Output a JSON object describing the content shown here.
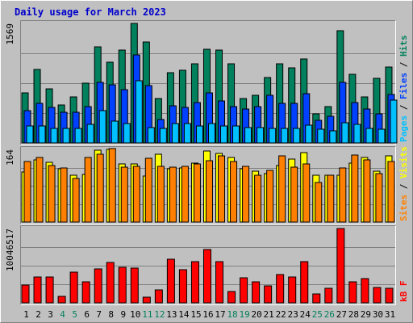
{
  "chart_data": {
    "type": "bar",
    "title": "Daily usage for March 2023",
    "days": [
      "1",
      "2",
      "3",
      "4",
      "5",
      "6",
      "7",
      "8",
      "9",
      "10",
      "11",
      "12",
      "13",
      "14",
      "15",
      "16",
      "17",
      "18",
      "19",
      "20",
      "21",
      "22",
      "23",
      "24",
      "25",
      "26",
      "27",
      "28",
      "29",
      "30",
      "31"
    ],
    "weekend_days": [
      "4",
      "5",
      "11",
      "12",
      "18",
      "19",
      "25",
      "26"
    ],
    "panels": [
      {
        "id": "hits",
        "max_label": "1569",
        "ymax": 1569,
        "series": [
          {
            "name": "Hits",
            "color": "#00805c",
            "values": [
              660,
              970,
              710,
              500,
              600,
              780,
              1260,
              1060,
              1220,
              1569,
              1330,
              580,
              920,
              950,
              1040,
              1230,
              1220,
              1040,
              580,
              630,
              860,
              1040,
              990,
              1100,
              380,
              480,
              1470,
              900,
              600,
              850,
              1000
            ]
          },
          {
            "name": "Files",
            "color": "#0040ff",
            "values": [
              420,
              520,
              470,
              400,
              400,
              480,
              790,
              760,
              700,
              1160,
              750,
              310,
              490,
              470,
              530,
              660,
              550,
              480,
              450,
              480,
              630,
              520,
              520,
              650,
              300,
              350,
              790,
              530,
              440,
              380,
              640
            ]
          },
          {
            "name": "Pages",
            "color": "#00c0ff",
            "values": [
              220,
              220,
              190,
              190,
              190,
              240,
              420,
              290,
              250,
              820,
              200,
              190,
              250,
              250,
              220,
              250,
              220,
              220,
              200,
              200,
              190,
              190,
              190,
              230,
              180,
              160,
              270,
              240,
              190,
              180,
              560
            ]
          }
        ],
        "labels": [
          {
            "text": "Pages",
            "color": "#00c0ff"
          },
          {
            "text": " / ",
            "color": "#000000"
          },
          {
            "text": "Files",
            "color": "#0040ff"
          },
          {
            "text": " / ",
            "color": "#000000"
          },
          {
            "text": "Hits",
            "color": "#00805c"
          }
        ]
      },
      {
        "id": "visits",
        "max_label": "164",
        "ymax": 164,
        "series": [
          {
            "name": "Visits",
            "color": "#ffff00",
            "values": [
              113,
              140,
              134,
              121,
              105,
              108,
              163,
              164,
              132,
              132,
              104,
              153,
              120,
              122,
              133,
              160,
              154,
              146,
              120,
              115,
              110,
              127,
              142,
              156,
              105,
              105,
              106,
              133,
              146,
              114,
              149
            ]
          },
          {
            "name": "Sites",
            "color": "#ff8000",
            "values": [
              136,
              145,
              127,
              122,
              98,
              146,
              153,
              165,
              124,
              125,
              144,
              125,
              123,
              126,
              132,
              139,
              150,
              136,
              126,
              106,
              117,
              150,
              124,
              131,
              90,
              106,
              122,
              151,
              141,
              109,
              136
            ]
          }
        ],
        "labels": [
          {
            "text": "Sites",
            "color": "#ff8000"
          },
          {
            "text": " / ",
            "color": "#000000"
          },
          {
            "text": "Visits",
            "color": "#ffff00"
          }
        ]
      },
      {
        "id": "kbytes",
        "max_label": "10046517",
        "ymax": 10046517,
        "series": [
          {
            "name": "kB F",
            "color": "#ff0000",
            "values": [
              2400000,
              3500000,
              3500000,
              900000,
              4200000,
              2800000,
              4600000,
              5500000,
              4800000,
              4700000,
              800000,
              1700000,
              5900000,
              4500000,
              5600000,
              7200000,
              5600000,
              1500000,
              3400000,
              2800000,
              2300000,
              3800000,
              3500000,
              5600000,
              1200000,
              2000000,
              10046517,
              2800000,
              3300000,
              2100000,
              2000000
            ]
          }
        ],
        "labels": [
          {
            "text": "kB F",
            "color": "#ff0000"
          }
        ]
      }
    ]
  }
}
